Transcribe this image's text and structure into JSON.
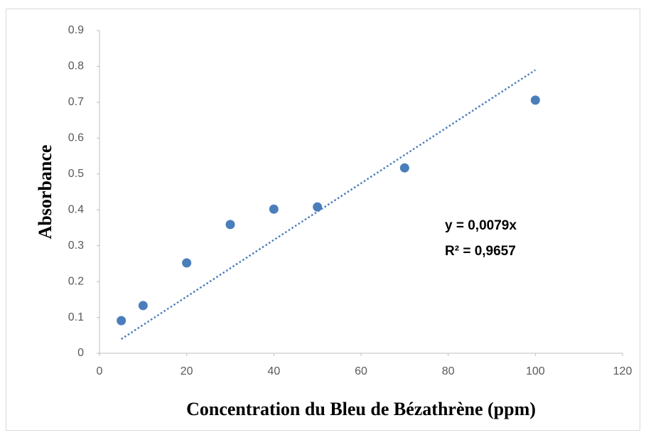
{
  "chart_data": {
    "type": "scatter",
    "x_label": "Concentration du Bleu de Bézathrène (ppm)",
    "y_label": "Absorbance",
    "x": [
      5,
      10,
      20,
      30,
      40,
      50,
      70,
      100
    ],
    "values": [
      0.091,
      0.133,
      0.252,
      0.359,
      0.402,
      0.408,
      0.517,
      0.706
    ],
    "color": "#4a7ebb",
    "trendline_slope": 0.0079,
    "trendline_color": "#4a7ebb",
    "annotations": [
      "y = 0,0079x",
      "R² = 0,9657"
    ],
    "xlim": [
      0,
      120
    ],
    "xticks": [
      0,
      20,
      40,
      60,
      80,
      100,
      120
    ],
    "ylim": [
      0,
      0.9
    ],
    "yticks": [
      0,
      0.1,
      0.2,
      0.3,
      0.4,
      0.5,
      0.6,
      0.7,
      0.8,
      0.9
    ],
    "grid": false
  }
}
